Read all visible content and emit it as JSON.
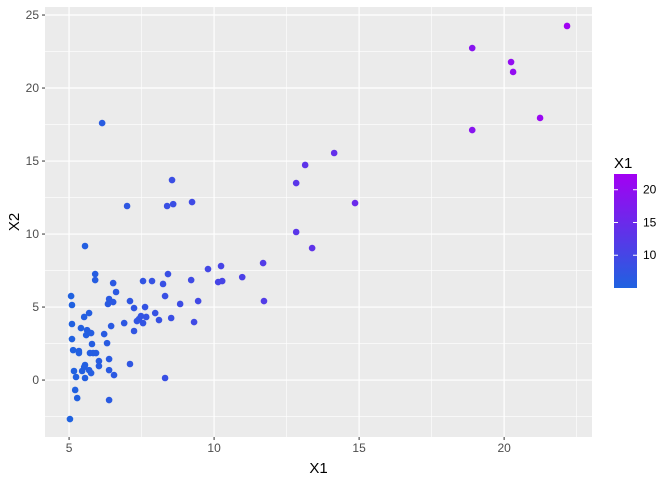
{
  "chart_data": {
    "type": "scatter",
    "title": "",
    "xlabel": "X1",
    "ylabel": "X2",
    "xlim": [
      4.17,
      23.03
    ],
    "ylim": [
      -3.9,
      25.55
    ],
    "x_ticks": [
      5,
      10,
      15,
      20
    ],
    "y_ticks": [
      0,
      5,
      10,
      15,
      20,
      25
    ],
    "grid": true,
    "legend": {
      "title": "X1",
      "placement": "right",
      "type": "colorbar",
      "ticks": [
        10,
        15,
        20
      ],
      "range": [
        5.0,
        22.4
      ],
      "low_color": "#1f62e0",
      "high_color": "#a300f3"
    },
    "colors": {
      "panel_bg": "#ebebeb",
      "grid": "#ffffff",
      "axis_text": "#4d4d4d"
    },
    "points": [
      [
        5.07,
        5.75
      ],
      [
        5.1,
        5.14
      ],
      [
        5.1,
        3.84
      ],
      [
        5.1,
        2.81
      ],
      [
        5.14,
        2.05
      ],
      [
        5.34,
        1.99
      ],
      [
        5.34,
        1.85
      ],
      [
        5.52,
        4.32
      ],
      [
        5.69,
        4.59
      ],
      [
        5.41,
        3.56
      ],
      [
        5.62,
        3.42
      ],
      [
        5.66,
        3.29
      ],
      [
        5.76,
        3.22
      ],
      [
        5.59,
        3.08
      ],
      [
        5.79,
        2.47
      ],
      [
        5.72,
        1.85
      ],
      [
        5.83,
        1.85
      ],
      [
        5.93,
        1.85
      ],
      [
        5.55,
        1.03
      ],
      [
        5.52,
        0.89
      ],
      [
        5.45,
        0.62
      ],
      [
        5.17,
        0.62
      ],
      [
        5.24,
        0.21
      ],
      [
        5.55,
        0.14
      ],
      [
        5.69,
        0.68
      ],
      [
        5.76,
        0.48
      ],
      [
        6.03,
        1.3
      ],
      [
        6.03,
        0.96
      ],
      [
        6.38,
        1.44
      ],
      [
        6.38,
        0.68
      ],
      [
        6.55,
        0.34
      ],
      [
        5.21,
        -0.68
      ],
      [
        5.28,
        -1.23
      ],
      [
        6.38,
        -1.37
      ],
      [
        6.21,
        3.15
      ],
      [
        6.31,
        2.53
      ],
      [
        6.45,
        3.7
      ],
      [
        6.9,
        3.9
      ],
      [
        7.24,
        3.36
      ],
      [
        7.1,
        1.1
      ],
      [
        6.62,
        6.03
      ],
      [
        6.38,
        5.55
      ],
      [
        6.34,
        5.21
      ],
      [
        6.52,
        5.34
      ],
      [
        7.1,
        5.41
      ],
      [
        7.24,
        4.93
      ],
      [
        7.62,
        5.0
      ],
      [
        7.48,
        4.38
      ],
      [
        7.41,
        4.18
      ],
      [
        7.34,
        4.04
      ],
      [
        7.55,
        3.9
      ],
      [
        7.66,
        4.32
      ],
      [
        7.97,
        4.59
      ],
      [
        8.1,
        4.11
      ],
      [
        5.03,
        -2.67
      ],
      [
        6.14,
        17.6
      ],
      [
        6.52,
        6.64
      ],
      [
        7.55,
        6.78
      ],
      [
        7.86,
        6.78
      ],
      [
        8.41,
        7.26
      ],
      [
        8.24,
        6.58
      ],
      [
        8.31,
        5.75
      ],
      [
        8.52,
        4.25
      ],
      [
        8.83,
        5.21
      ],
      [
        9.21,
        6.85
      ],
      [
        9.45,
        5.41
      ],
      [
        9.31,
        3.97
      ],
      [
        9.79,
        7.6
      ],
      [
        10.24,
        7.81
      ],
      [
        10.14,
        6.71
      ],
      [
        10.28,
        6.78
      ],
      [
        10.97,
        7.05
      ],
      [
        11.69,
        8.01
      ],
      [
        11.72,
        5.41
      ],
      [
        8.31,
        0.14
      ],
      [
        5.55,
        9.18
      ],
      [
        5.9,
        7.26
      ],
      [
        5.9,
        6.85
      ],
      [
        7.0,
        11.92
      ],
      [
        8.38,
        11.92
      ],
      [
        8.59,
        12.05
      ],
      [
        8.55,
        13.7
      ],
      [
        9.24,
        12.19
      ],
      [
        12.83,
        13.49
      ],
      [
        13.14,
        14.73
      ],
      [
        14.14,
        15.55
      ],
      [
        14.86,
        12.12
      ],
      [
        12.83,
        10.14
      ],
      [
        13.38,
        9.04
      ],
      [
        18.9,
        22.74
      ],
      [
        18.9,
        17.12
      ],
      [
        20.24,
        21.78
      ],
      [
        20.31,
        21.1
      ],
      [
        21.24,
        17.95
      ],
      [
        22.17,
        24.25
      ]
    ]
  }
}
